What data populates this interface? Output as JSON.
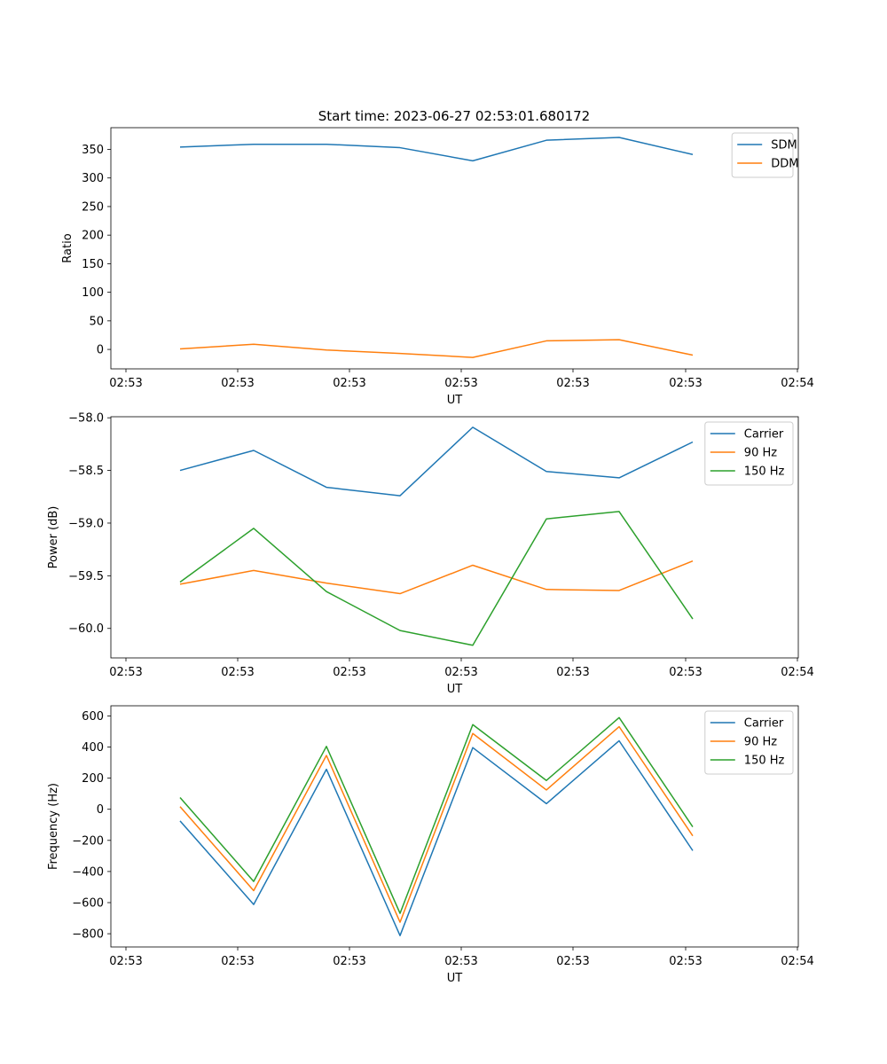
{
  "figure": {
    "title": "Start time: 2023-06-27 02:53:01.680172"
  },
  "chart_data": [
    {
      "type": "line",
      "xlabel": "UT",
      "ylabel": "Ratio",
      "x_tick_labels": [
        "02:53",
        "02:53",
        "02:53",
        "02:53",
        "02:53",
        "02:53",
        "02:53"
      ],
      "x_last_tick_label": "02:54",
      "ylim": [
        -34,
        388
      ],
      "yticks": [
        0,
        50,
        100,
        150,
        200,
        250,
        300,
        350
      ],
      "ytick_labels": [
        "0",
        "50",
        "100",
        "150",
        "200",
        "250",
        "300",
        "350"
      ],
      "legend_position": "top-right",
      "grid": false,
      "series": [
        {
          "name": "SDM",
          "color": "#1f77b4",
          "values": [
            354,
            359,
            359,
            353,
            330,
            366,
            371,
            341
          ]
        },
        {
          "name": "DDM",
          "color": "#ff7f0e",
          "values": [
            1,
            9,
            -1,
            -7,
            -14,
            15,
            17,
            -10
          ]
        }
      ]
    },
    {
      "type": "line",
      "xlabel": "UT",
      "ylabel": "Power (dB)",
      "x_tick_labels": [
        "02:53",
        "02:53",
        "02:53",
        "02:53",
        "02:53",
        "02:53",
        "02:53"
      ],
      "x_last_tick_label": "02:54",
      "ylim": [
        -60.28,
        -57.99
      ],
      "yticks": [
        -60.0,
        -59.5,
        -59.0,
        -58.5,
        -58.0
      ],
      "ytick_labels": [
        "−60.0",
        "−59.5",
        "−59.0",
        "−58.5",
        "−58.0"
      ],
      "legend_position": "top-right",
      "grid": false,
      "series": [
        {
          "name": "Carrier",
          "color": "#1f77b4",
          "values": [
            -58.5,
            -58.31,
            -58.66,
            -58.74,
            -58.09,
            -58.51,
            -58.57,
            -58.23
          ]
        },
        {
          "name": "90 Hz",
          "color": "#ff7f0e",
          "values": [
            -59.58,
            -59.45,
            -59.57,
            -59.67,
            -59.4,
            -59.63,
            -59.64,
            -59.36
          ]
        },
        {
          "name": "150 Hz",
          "color": "#2ca02c",
          "values": [
            -59.56,
            -59.05,
            -59.65,
            -60.02,
            -60.16,
            -58.96,
            -58.89,
            -59.91
          ]
        }
      ]
    },
    {
      "type": "line",
      "xlabel": "UT",
      "ylabel": "Frequency (Hz)",
      "x_tick_labels": [
        "02:53",
        "02:53",
        "02:53",
        "02:53",
        "02:53",
        "02:53",
        "02:53"
      ],
      "x_last_tick_label": "02:54",
      "ylim": [
        -885,
        665
      ],
      "yticks": [
        -800,
        -600,
        -400,
        -200,
        0,
        200,
        400,
        600
      ],
      "ytick_labels": [
        "−800",
        "−600",
        "−400",
        "−200",
        "0",
        "200",
        "400",
        "600"
      ],
      "legend_position": "top-right",
      "grid": false,
      "series": [
        {
          "name": "Carrier",
          "color": "#1f77b4",
          "values": [
            -75,
            -612,
            257,
            -812,
            396,
            36,
            440,
            -266
          ]
        },
        {
          "name": "90 Hz",
          "color": "#ff7f0e",
          "values": [
            17,
            -523,
            346,
            -726,
            487,
            124,
            531,
            -171
          ]
        },
        {
          "name": "150 Hz",
          "color": "#2ca02c",
          "values": [
            75,
            -464,
            404,
            -669,
            544,
            185,
            589,
            -113
          ]
        }
      ]
    }
  ]
}
